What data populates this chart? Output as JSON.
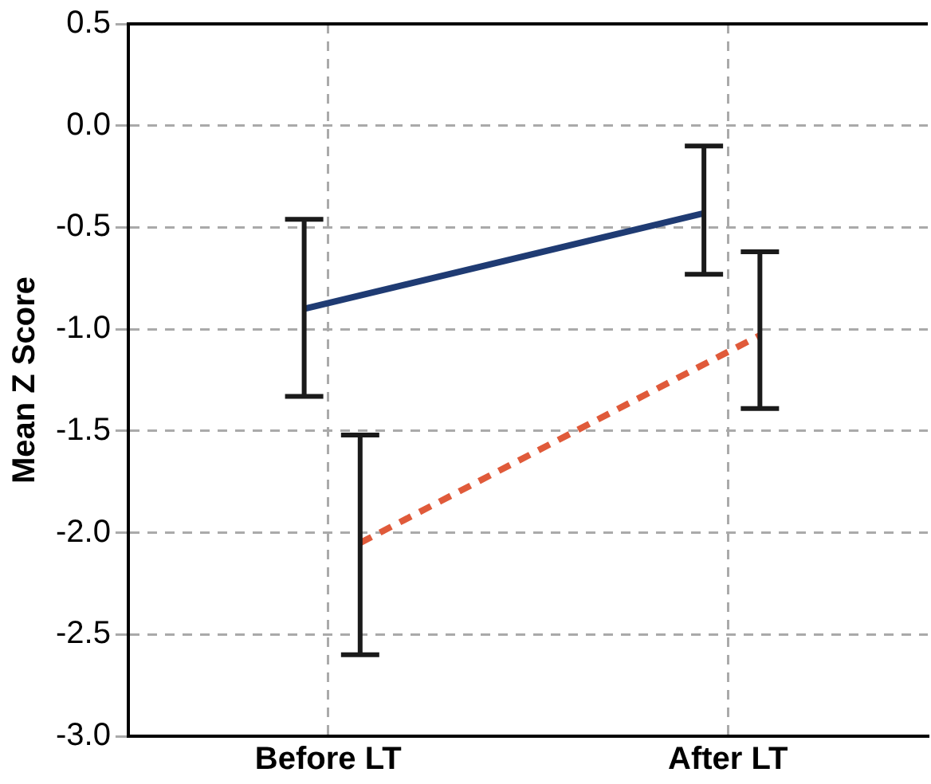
{
  "chart_data": {
    "type": "line",
    "ylabel": "Mean Z Score",
    "categories": [
      "Before LT",
      "After LT"
    ],
    "series": [
      {
        "color": "#1f3b73",
        "line_style": "solid",
        "values": [
          -0.9,
          -0.43
        ],
        "errors": [
          [
            -1.33,
            -0.46
          ],
          [
            -0.73,
            -0.1
          ]
        ]
      },
      {
        "color": "#e05a3a",
        "line_style": "dashed",
        "values": [
          -2.05,
          -1.03
        ],
        "errors": [
          [
            -2.6,
            -1.52
          ],
          [
            -1.39,
            -0.62
          ]
        ]
      }
    ],
    "ylim": [
      -3.0,
      0.5
    ],
    "yticks": [
      {
        "value": -3,
        "label": "-3.0"
      },
      {
        "value": -2.5,
        "label": "-2.5"
      },
      {
        "value": -2,
        "label": "-2.0"
      },
      {
        "value": -1.5,
        "label": "-1.5"
      },
      {
        "value": -1,
        "label": "-1.0"
      },
      {
        "value": -0.5,
        "label": "-0.5"
      },
      {
        "value": 0,
        "label": "0.0"
      },
      {
        "value": 0.5,
        "label": "0.5"
      }
    ],
    "grid": true,
    "marker": "none"
  }
}
